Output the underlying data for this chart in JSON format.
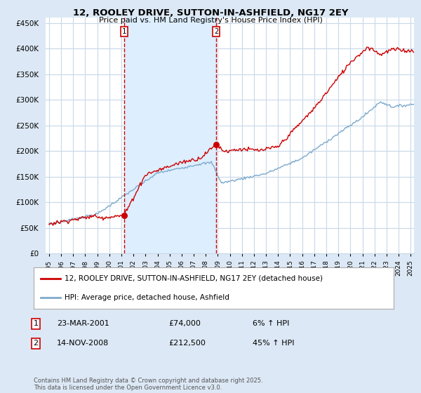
{
  "title_line1": "12, ROOLEY DRIVE, SUTTON-IN-ASHFIELD, NG17 2EY",
  "title_line2": "Price paid vs. HM Land Registry's House Price Index (HPI)",
  "ylabel_ticks": [
    "£0",
    "£50K",
    "£100K",
    "£150K",
    "£200K",
    "£250K",
    "£300K",
    "£350K",
    "£400K",
    "£450K"
  ],
  "ytick_values": [
    0,
    50000,
    100000,
    150000,
    200000,
    250000,
    300000,
    350000,
    400000,
    450000
  ],
  "ylim": [
    0,
    460000
  ],
  "xlim_start": 1994.7,
  "xlim_end": 2025.3,
  "xtick_years": [
    1995,
    1996,
    1997,
    1998,
    1999,
    2000,
    2001,
    2002,
    2003,
    2004,
    2005,
    2006,
    2007,
    2008,
    2009,
    2010,
    2011,
    2012,
    2013,
    2014,
    2015,
    2016,
    2017,
    2018,
    2019,
    2020,
    2021,
    2022,
    2023,
    2024,
    2025
  ],
  "sale1_x": 2001.22,
  "sale1_y": 74000,
  "sale2_x": 2008.87,
  "sale2_y": 212500,
  "vline1_x": 2001.22,
  "vline2_x": 2008.87,
  "vline_color": "#cc0000",
  "property_line_color": "#cc0000",
  "hpi_line_color": "#7eaacc",
  "shade_color": "#ddeeff",
  "bg_color": "#dce8f5",
  "plot_bg_color": "#ffffff",
  "grid_color": "#c8d8e8",
  "legend_label1": "12, ROOLEY DRIVE, SUTTON-IN-ASHFIELD, NG17 2EY (detached house)",
  "legend_label2": "HPI: Average price, detached house, Ashfield",
  "footnote": "Contains HM Land Registry data © Crown copyright and database right 2025.\nThis data is licensed under the Open Government Licence v3.0.",
  "table_row1_num": "1",
  "table_row1_date": "23-MAR-2001",
  "table_row1_price": "£74,000",
  "table_row1_hpi": "6% ↑ HPI",
  "table_row2_num": "2",
  "table_row2_date": "14-NOV-2008",
  "table_row2_price": "£212,500",
  "table_row2_hpi": "45% ↑ HPI"
}
